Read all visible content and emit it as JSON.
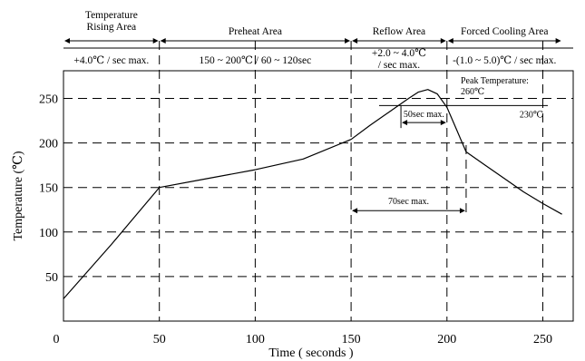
{
  "chart_data": {
    "type": "line",
    "title": "",
    "xlabel": "Time ( seconds )",
    "ylabel": "Temperature (℃)",
    "xlim": [
      0,
      260
    ],
    "ylim": [
      0,
      290
    ],
    "x_ticks": [
      0,
      50,
      100,
      150,
      200,
      250
    ],
    "x_tick_labels": [
      "0",
      "50",
      "100",
      "150",
      "200",
      "250"
    ],
    "y_ticks": [
      50,
      100,
      150,
      200,
      250
    ],
    "y_tick_labels": [
      "50",
      "100",
      "150",
      "200",
      "250"
    ],
    "grid": "dashed",
    "series": [
      {
        "x": [
          0,
          25,
          50,
          75,
          100,
          125,
          150,
          160,
          170,
          180,
          185,
          190,
          195,
          200,
          205,
          210,
          220,
          230,
          240,
          250,
          260
        ],
        "y": [
          25,
          86,
          150,
          160,
          170,
          182,
          204,
          220,
          235,
          250,
          257,
          260,
          255,
          240,
          215,
          190,
          175,
          160,
          145,
          132,
          120
        ]
      }
    ],
    "zones": [
      {
        "name": "Temperature\nRising Area",
        "x_start": 0,
        "x_end": 50,
        "rate": "+4.0℃ / sec max."
      },
      {
        "name": "Preheat Area",
        "x_start": 50,
        "x_end": 150,
        "rate": "150 ~ 200℃ / 60 ~ 120sec"
      },
      {
        "name": "Reflow Area",
        "x_start": 150,
        "x_end": 200,
        "rate": "+2.0 ~ 4.0℃\n/ sec max."
      },
      {
        "name": "Forced Cooling Area",
        "x_start": 200,
        "x_end": 260,
        "rate": "-(1.0 ~ 5.0)℃ / sec max."
      }
    ],
    "annotations": {
      "peak_label": "Peak Temperature:\n260℃",
      "t230_label": "230℃",
      "sec50_label": "50sec max.",
      "sec70_label": "70sec max.",
      "t230_value": 242,
      "sec50": {
        "x_start": 176,
        "x_end": 200,
        "y": 230
      },
      "sec70": {
        "x_start": 150,
        "x_end": 210,
        "y": 124
      },
      "dashed_x_extra": [
        210
      ]
    }
  }
}
